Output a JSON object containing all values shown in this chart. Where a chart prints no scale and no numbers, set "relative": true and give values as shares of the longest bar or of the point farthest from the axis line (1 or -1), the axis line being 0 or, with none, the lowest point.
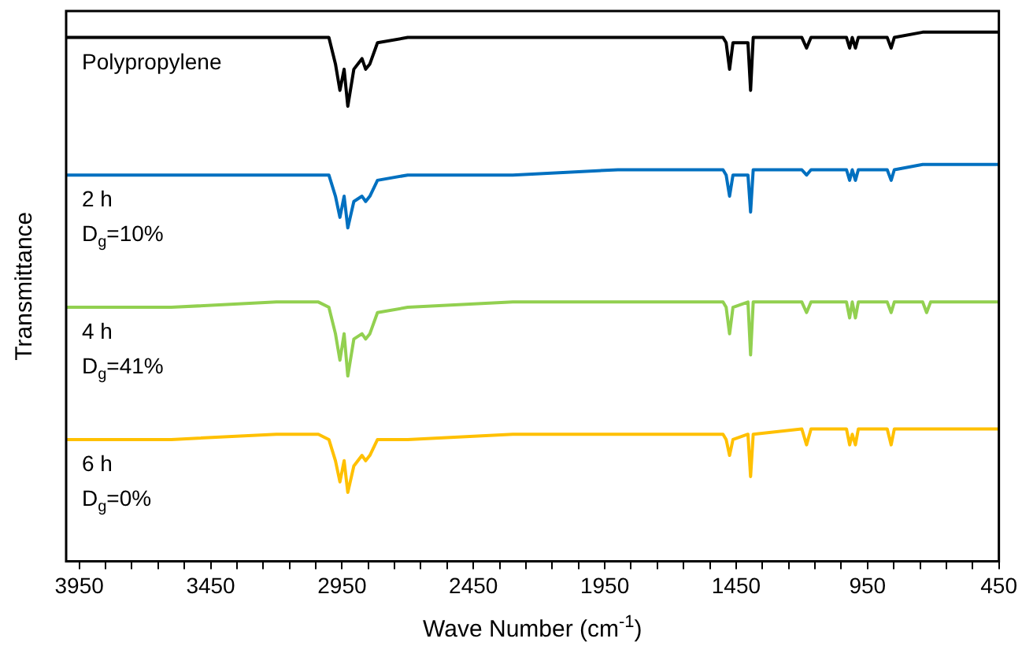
{
  "chart_data": {
    "type": "line",
    "relative": true,
    "xlabel": "Wave Number (cm$^{-1}$)",
    "ylabel": "Transmittance",
    "x": [
      4000,
      3600,
      3200,
      3040,
      3000,
      2975,
      2958,
      2942,
      2928,
      2905,
      2874,
      2860,
      2844,
      2815,
      2700,
      2300,
      1900,
      1500,
      1488,
      1475,
      1462,
      1405,
      1395,
      1385,
      1200,
      1182,
      1165,
      1030,
      1018,
      1008,
      996,
      985,
      875,
      860,
      848,
      740,
      725,
      710,
      600,
      450
    ],
    "xlim": [
      4000,
      450
    ],
    "xticks": [
      3950,
      {
        "value": 3850,
        "label": null
      },
      {
        "value": 3750,
        "label": null
      },
      {
        "value": 3650,
        "label": null
      },
      {
        "value": 3550,
        "label": null
      },
      3450,
      {
        "value": 3350,
        "label": null
      },
      {
        "value": 3250,
        "label": null
      },
      {
        "value": 3150,
        "label": null
      },
      {
        "value": 3050,
        "label": null
      },
      2950,
      {
        "value": 2850,
        "label": null
      },
      {
        "value": 2750,
        "label": null
      },
      {
        "value": 2650,
        "label": null
      },
      {
        "value": 2550,
        "label": null
      },
      2450,
      {
        "value": 2350,
        "label": null
      },
      {
        "value": 2250,
        "label": null
      },
      {
        "value": 2150,
        "label": null
      },
      {
        "value": 2050,
        "label": null
      },
      1950,
      {
        "value": 1850,
        "label": null
      },
      {
        "value": 1750,
        "label": null
      },
      {
        "value": 1650,
        "label": null
      },
      {
        "value": 1550,
        "label": null
      },
      1450,
      {
        "value": 1350,
        "label": null
      },
      {
        "value": 1250,
        "label": null
      },
      {
        "value": 1150,
        "label": null
      },
      {
        "value": 1050,
        "label": null
      },
      950,
      {
        "value": 850,
        "label": null
      },
      {
        "value": 750,
        "label": null
      },
      {
        "value": 650,
        "label": null
      },
      {
        "value": 550,
        "label": null
      },
      450
    ],
    "series": [
      {
        "name": "Polypropylene",
        "color": "#000000",
        "values": [
          0.99,
          0.99,
          0.99,
          0.99,
          0.99,
          0.94,
          0.89,
          0.93,
          0.86,
          0.93,
          0.95,
          0.93,
          0.94,
          0.98,
          0.99,
          0.99,
          0.99,
          0.99,
          0.98,
          0.93,
          0.98,
          0.98,
          0.89,
          0.99,
          0.99,
          0.97,
          0.99,
          0.99,
          0.97,
          0.99,
          0.97,
          0.99,
          0.99,
          0.97,
          0.99,
          1,
          1,
          1,
          1,
          1
        ]
      },
      {
        "name": "2 h",
        "color": "#0070c0",
        "values": [
          0.73,
          0.73,
          0.73,
          0.73,
          0.73,
          0.69,
          0.65,
          0.69,
          0.63,
          0.68,
          0.69,
          0.68,
          0.69,
          0.72,
          0.73,
          0.73,
          0.74,
          0.74,
          0.73,
          0.69,
          0.73,
          0.73,
          0.66,
          0.74,
          0.74,
          0.73,
          0.74,
          0.74,
          0.72,
          0.74,
          0.72,
          0.74,
          0.74,
          0.72,
          0.74,
          0.75,
          0.75,
          0.75,
          0.75,
          0.75
        ]
      },
      {
        "name": "4 h",
        "color": "#92d050",
        "values": [
          0.48,
          0.48,
          0.49,
          0.49,
          0.48,
          0.43,
          0.38,
          0.43,
          0.35,
          0.42,
          0.43,
          0.42,
          0.43,
          0.47,
          0.48,
          0.49,
          0.49,
          0.49,
          0.48,
          0.43,
          0.48,
          0.49,
          0.39,
          0.49,
          0.49,
          0.47,
          0.49,
          0.49,
          0.46,
          0.49,
          0.46,
          0.49,
          0.49,
          0.47,
          0.49,
          0.49,
          0.47,
          0.49,
          0.49,
          0.49
        ]
      },
      {
        "name": "6 h",
        "color": "#ffc000",
        "values": [
          0.23,
          0.23,
          0.24,
          0.24,
          0.23,
          0.19,
          0.15,
          0.19,
          0.13,
          0.18,
          0.2,
          0.19,
          0.2,
          0.23,
          0.23,
          0.24,
          0.24,
          0.24,
          0.23,
          0.2,
          0.23,
          0.24,
          0.16,
          0.24,
          0.25,
          0.22,
          0.25,
          0.25,
          0.22,
          0.24,
          0.22,
          0.25,
          0.25,
          0.22,
          0.25,
          0.25,
          0.25,
          0.25,
          0.25,
          0.25
        ]
      }
    ],
    "annotations": [
      "D$_{g}$=10%",
      "D$_{g}$=41%",
      "D$_{g}$=0%"
    ]
  }
}
